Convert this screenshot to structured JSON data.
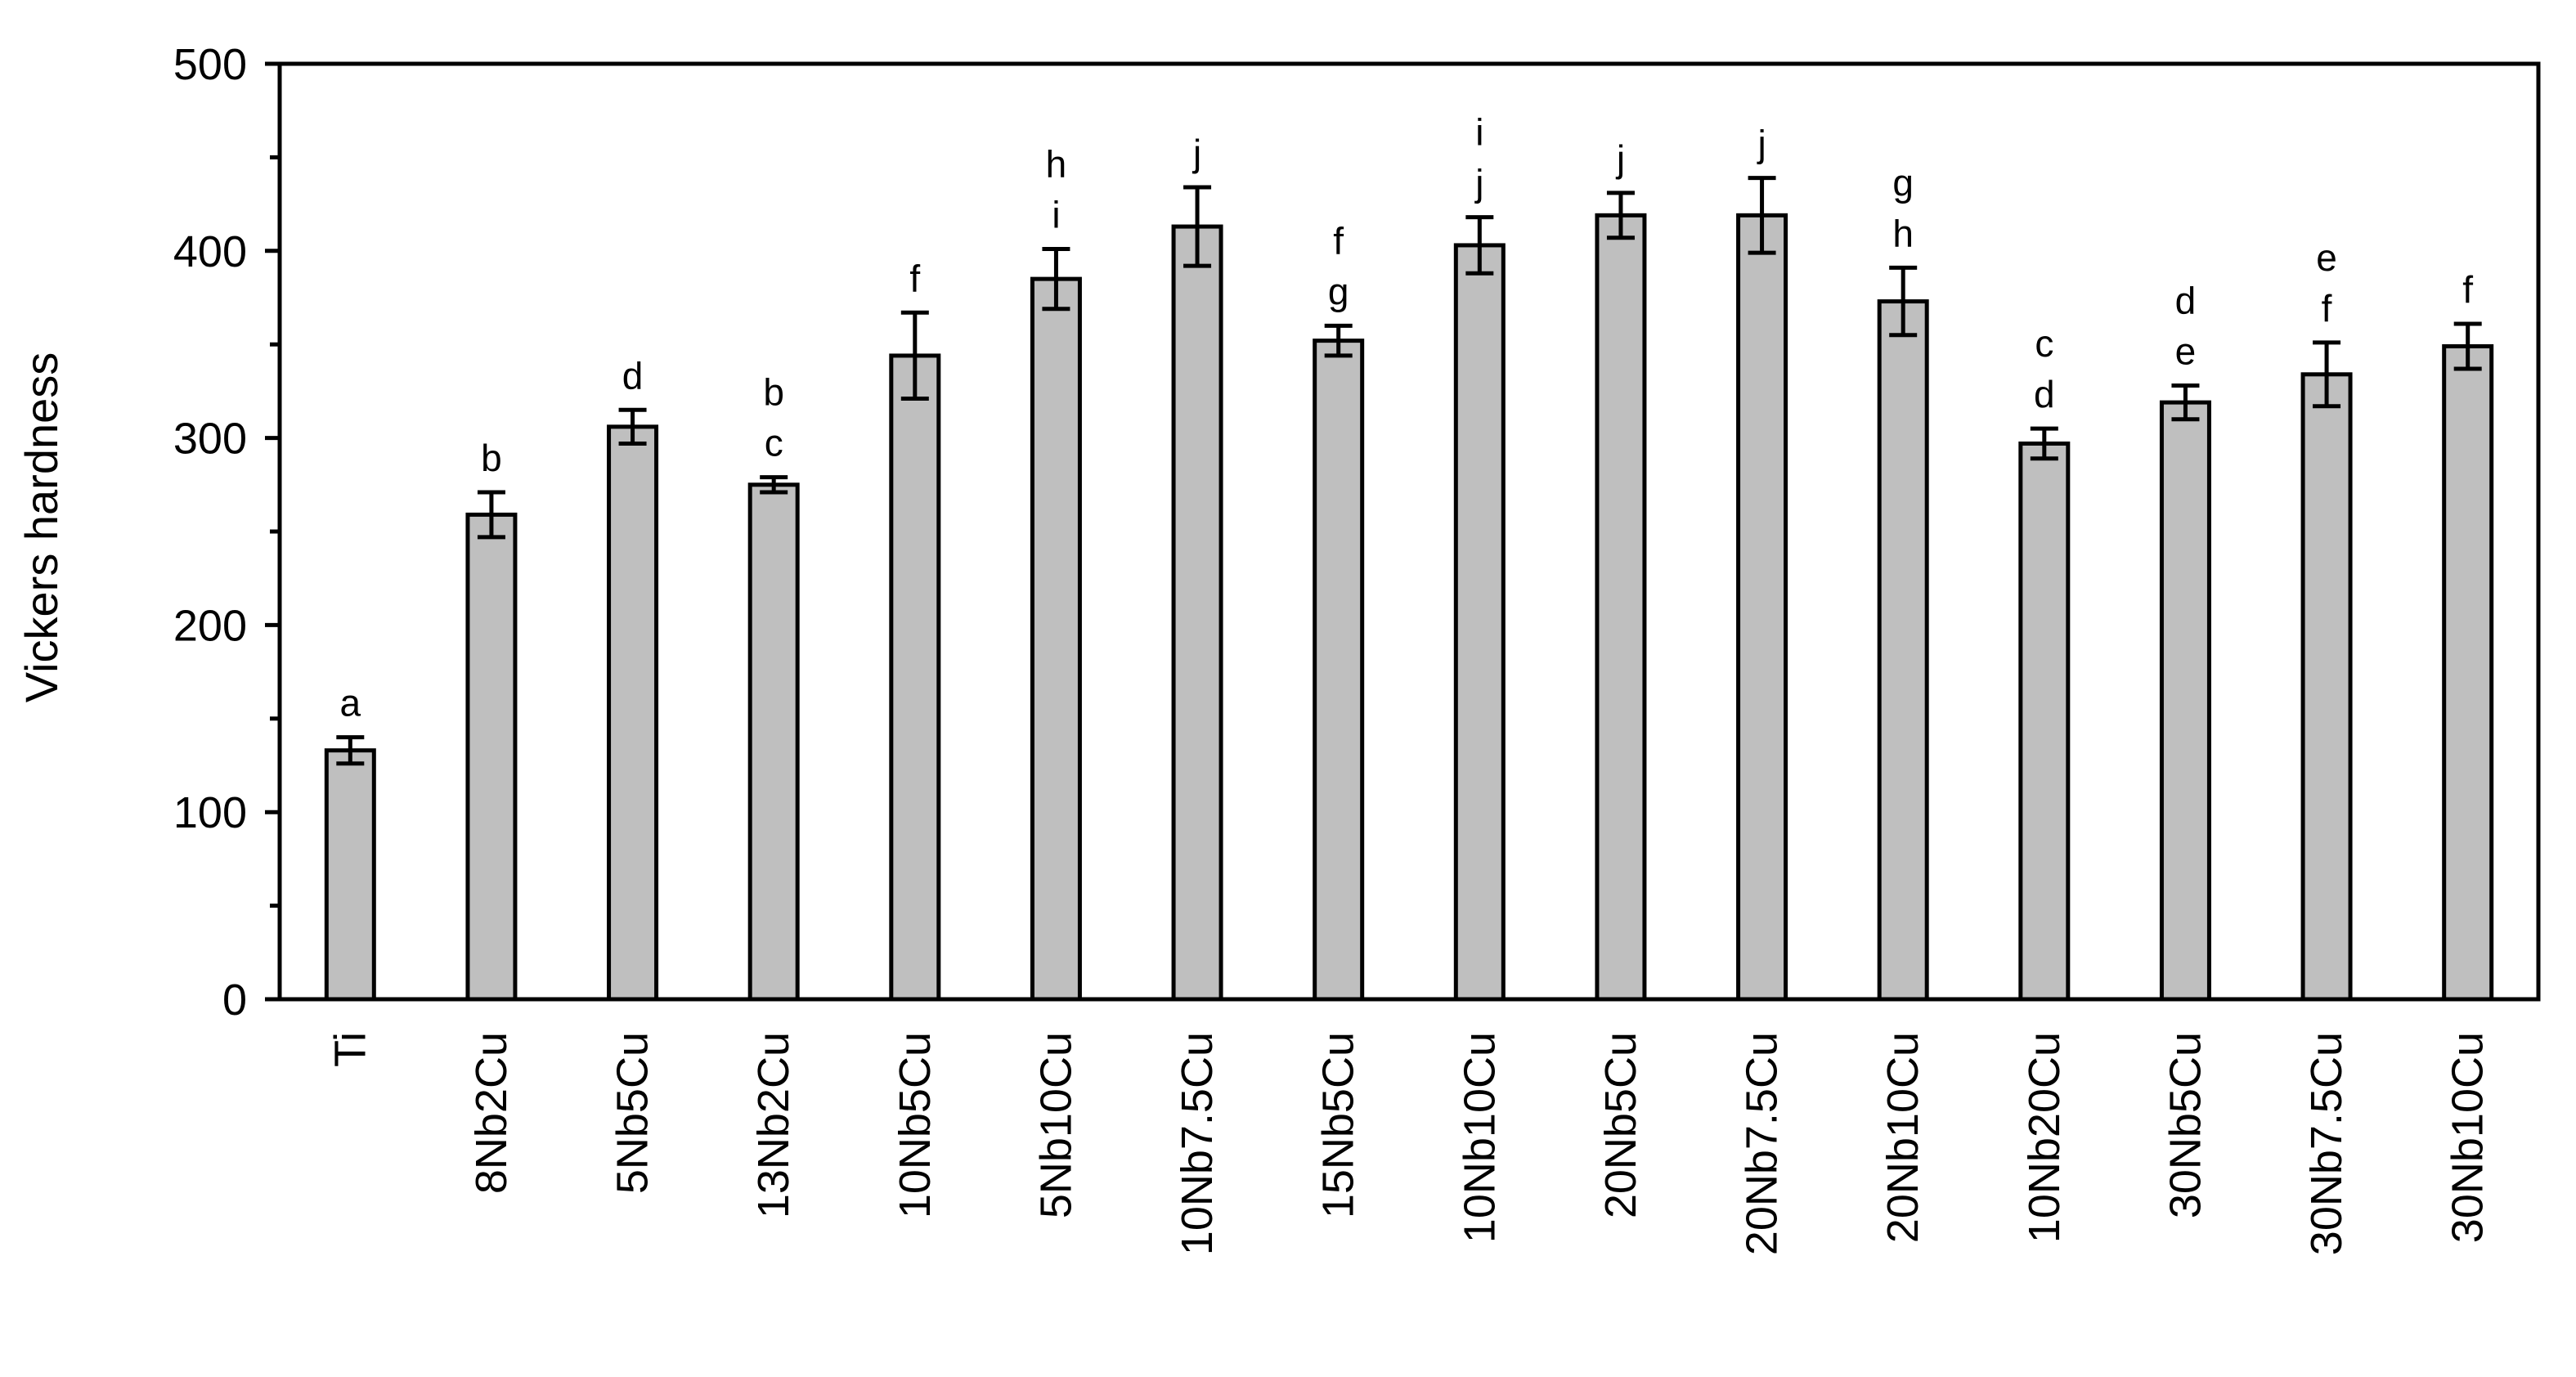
{
  "chart_data": {
    "type": "bar",
    "title": "",
    "xlabel": "",
    "ylabel": "Vickers hardness",
    "ylim": [
      0,
      500
    ],
    "y_major_ticks": [
      0,
      100,
      200,
      300,
      400,
      500
    ],
    "y_minor_step": 50,
    "grid": false,
    "legend": "none",
    "bar_color": "#bfbfbf",
    "bar_edge_color": "#000000",
    "categories": [
      "Ti",
      "8Nb2Cu",
      "5Nb5Cu",
      "13Nb2Cu",
      "10Nb5Cu",
      "5Nb10Cu",
      "10Nb7.5Cu",
      "15Nb5Cu",
      "10Nb10Cu",
      "20Nb5Cu",
      "20Nb7.5Cu",
      "20Nb10Cu",
      "10Nb20Cu",
      "30Nb5Cu",
      "30Nb7.5Cu",
      "30Nb10Cu"
    ],
    "values": [
      133,
      259,
      306,
      275,
      344,
      385,
      413,
      352,
      403,
      419,
      419,
      373,
      297,
      319,
      334,
      349
    ],
    "errors": [
      7,
      12,
      9,
      4,
      23,
      16,
      21,
      8,
      15,
      12,
      20,
      18,
      8,
      9,
      17,
      12
    ],
    "significance_letters": [
      [
        "a"
      ],
      [
        "b"
      ],
      [
        "d"
      ],
      [
        "b",
        "c"
      ],
      [
        "f"
      ],
      [
        "h",
        "i"
      ],
      [
        "j"
      ],
      [
        "f",
        "g"
      ],
      [
        "i",
        "j"
      ],
      [
        "j"
      ],
      [
        "j"
      ],
      [
        "g",
        "h"
      ],
      [
        "c",
        "d"
      ],
      [
        "d",
        "e"
      ],
      [
        "e",
        "f"
      ],
      [
        "f"
      ]
    ]
  }
}
